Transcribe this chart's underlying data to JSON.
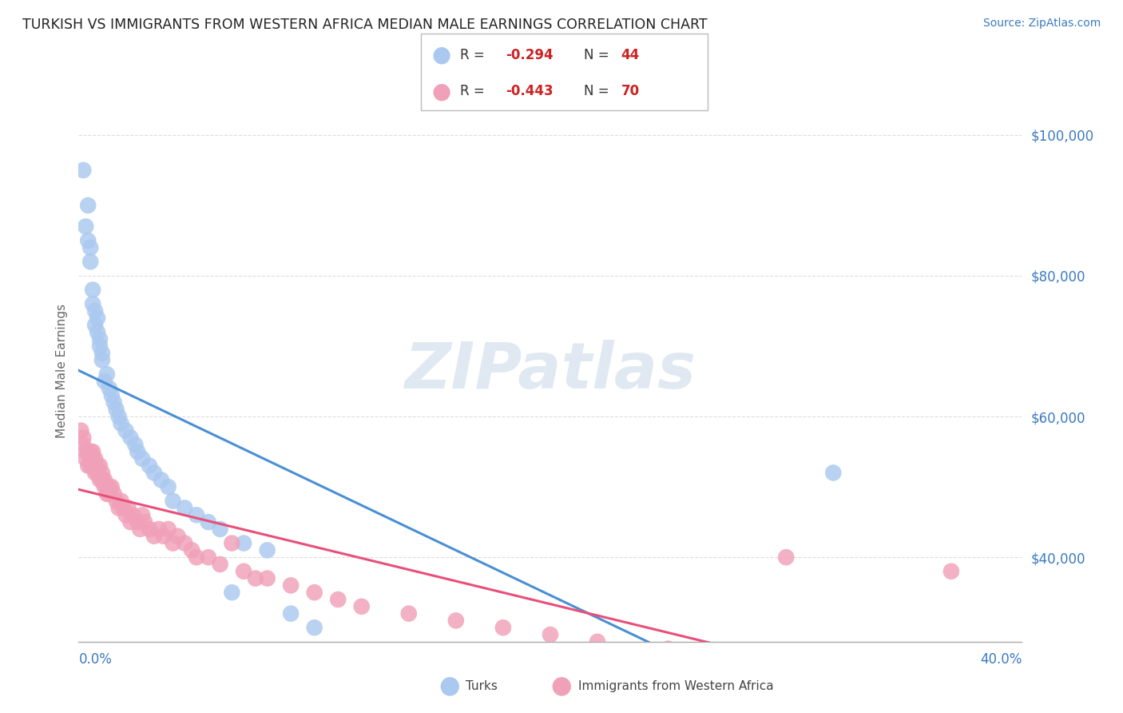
{
  "title": "TURKISH VS IMMIGRANTS FROM WESTERN AFRICA MEDIAN MALE EARNINGS CORRELATION CHART",
  "source": "Source: ZipAtlas.com",
  "ylabel": "Median Male Earnings",
  "xmin": 0.0,
  "xmax": 0.4,
  "ymin": 28000,
  "ymax": 105000,
  "yticks": [
    40000,
    60000,
    80000,
    100000
  ],
  "ytick_labels": [
    "$40,000",
    "$60,000",
    "$80,000",
    "$100,000"
  ],
  "grid_color": "#dddddd",
  "background_color": "#ffffff",
  "watermark": "ZIPatlas",
  "series": [
    {
      "name": "Turks",
      "R": -0.294,
      "N": 44,
      "color": "#aac8f0",
      "line_color": "#4a8fd4",
      "x": [
        0.002,
        0.003,
        0.004,
        0.004,
        0.005,
        0.005,
        0.006,
        0.006,
        0.007,
        0.007,
        0.008,
        0.008,
        0.009,
        0.009,
        0.01,
        0.01,
        0.011,
        0.012,
        0.013,
        0.014,
        0.015,
        0.016,
        0.017,
        0.018,
        0.02,
        0.022,
        0.024,
        0.025,
        0.027,
        0.03,
        0.032,
        0.035,
        0.038,
        0.04,
        0.045,
        0.05,
        0.055,
        0.06,
        0.065,
        0.07,
        0.08,
        0.09,
        0.1,
        0.32
      ],
      "y": [
        95000,
        87000,
        90000,
        85000,
        82000,
        84000,
        78000,
        76000,
        75000,
        73000,
        74000,
        72000,
        71000,
        70000,
        68000,
        69000,
        65000,
        66000,
        64000,
        63000,
        62000,
        61000,
        60000,
        59000,
        58000,
        57000,
        56000,
        55000,
        54000,
        53000,
        52000,
        51000,
        50000,
        48000,
        47000,
        46000,
        45000,
        44000,
        35000,
        42000,
        41000,
        32000,
        30000,
        52000
      ]
    },
    {
      "name": "Immigrants from Western Africa",
      "R": -0.443,
      "N": 70,
      "color": "#f0a0b8",
      "line_color": "#e8507a",
      "x": [
        0.001,
        0.002,
        0.002,
        0.003,
        0.003,
        0.004,
        0.004,
        0.005,
        0.005,
        0.005,
        0.006,
        0.006,
        0.006,
        0.007,
        0.007,
        0.007,
        0.008,
        0.008,
        0.009,
        0.009,
        0.01,
        0.01,
        0.011,
        0.011,
        0.012,
        0.012,
        0.013,
        0.013,
        0.014,
        0.015,
        0.016,
        0.017,
        0.018,
        0.019,
        0.02,
        0.021,
        0.022,
        0.023,
        0.025,
        0.026,
        0.027,
        0.028,
        0.03,
        0.032,
        0.034,
        0.036,
        0.038,
        0.04,
        0.042,
        0.045,
        0.048,
        0.05,
        0.055,
        0.06,
        0.065,
        0.07,
        0.075,
        0.08,
        0.09,
        0.1,
        0.11,
        0.12,
        0.14,
        0.16,
        0.18,
        0.2,
        0.22,
        0.25,
        0.3,
        0.37
      ],
      "y": [
        58000,
        57000,
        56000,
        55000,
        54000,
        55000,
        53000,
        55000,
        54000,
        53000,
        55000,
        54000,
        53000,
        54000,
        53000,
        52000,
        53000,
        52000,
        53000,
        51000,
        52000,
        51000,
        50000,
        51000,
        50000,
        49000,
        50000,
        49000,
        50000,
        49000,
        48000,
        47000,
        48000,
        47000,
        46000,
        47000,
        45000,
        46000,
        45000,
        44000,
        46000,
        45000,
        44000,
        43000,
        44000,
        43000,
        44000,
        42000,
        43000,
        42000,
        41000,
        40000,
        40000,
        39000,
        42000,
        38000,
        37000,
        37000,
        36000,
        35000,
        34000,
        33000,
        32000,
        31000,
        30000,
        29000,
        28000,
        27000,
        40000,
        38000
      ]
    }
  ]
}
